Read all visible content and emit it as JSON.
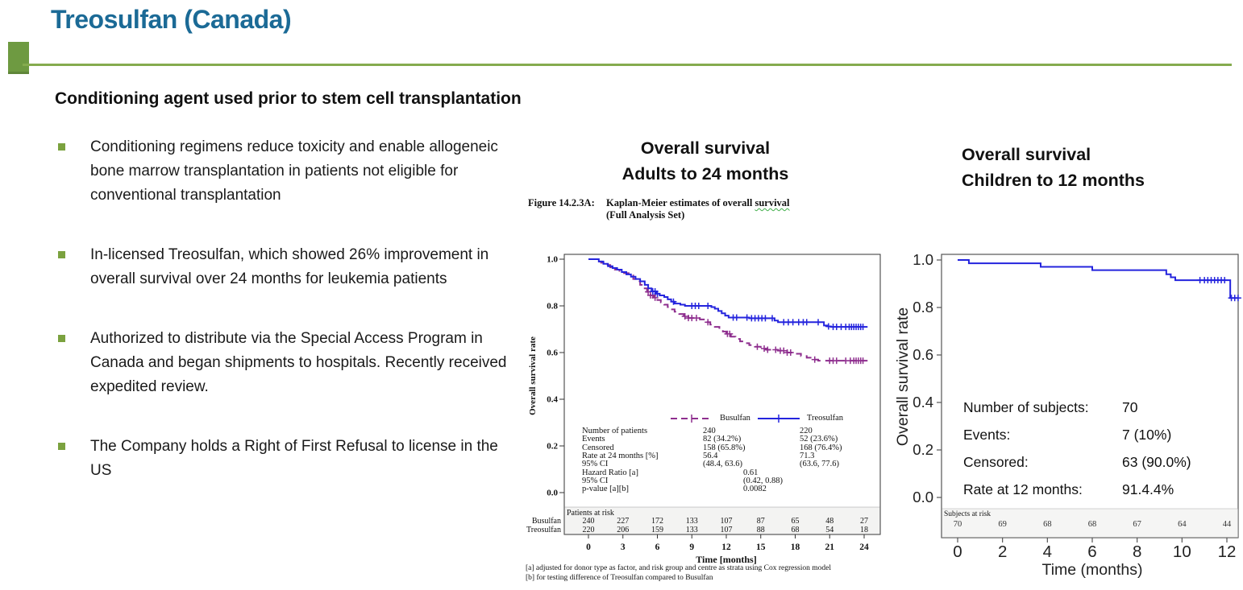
{
  "slide": {
    "title": "Treosulfan (Canada)",
    "subtitle": "Conditioning agent used prior to stem cell transplantation",
    "bullets": [
      "Conditioning regimens reduce toxicity and enable allogeneic bone marrow transplantation in patients not eligible for conventional transplantation",
      "In-licensed Treosulfan, which showed 26% improvement in overall survival over 24 months for leukemia patients",
      "Authorized to distribute via the Special Access Program in Canada and began shipments to hospitals. Recently received expedited review.",
      "The Company holds a Right of First Refusal to license in the US"
    ],
    "colors": {
      "title_teal": "#1B6A96",
      "accent_green": "#76A03F",
      "busulfan_purple": "#8E2E8E",
      "treosulfan_blue": "#2424DD"
    }
  },
  "adults_panel": {
    "title_line1": "Overall survival",
    "title_line2": "Adults to 24 months",
    "figure_label": "Figure 14.2.3A:",
    "figure_caption_prefix": "Kaplan-Meier estimates of overall ",
    "figure_caption_word": "survival",
    "figure_caption_line2": "(Full Analysis Set)",
    "footnote_a": "[a] adjusted for donor type as factor, and risk group and centre as strata using Cox regression model",
    "footnote_b": "[b] for testing difference of Treosulfan compared to Busulfan"
  },
  "children_panel": {
    "title_line1": "Overall survival",
    "title_line2": "Children to 12 months"
  },
  "chart_data": [
    {
      "id": "adults",
      "type": "line",
      "title": "Kaplan-Meier estimates of overall survival (Full Analysis Set)",
      "xlabel": "Time [months]",
      "ylabel": "Overall survival rate",
      "xlim": [
        0,
        24
      ],
      "ylim": [
        0,
        1
      ],
      "x_ticks": [
        0,
        3,
        6,
        9,
        12,
        15,
        18,
        21,
        24
      ],
      "y_ticks": [
        "1.0",
        "0.8",
        "0.6",
        "0.4",
        "0.2",
        "0.0"
      ],
      "series": [
        {
          "name": "Busulfan",
          "color": "#8E2E8E",
          "dash": true,
          "points": [
            [
              0,
              1
            ],
            [
              0.7,
              0.99
            ],
            [
              1.1,
              0.985
            ],
            [
              1.5,
              0.975
            ],
            [
              1.9,
              0.965
            ],
            [
              2.3,
              0.955
            ],
            [
              2.7,
              0.95
            ],
            [
              3.1,
              0.94
            ],
            [
              3.5,
              0.93
            ],
            [
              3.9,
              0.915
            ],
            [
              4.2,
              0.905
            ],
            [
              4.5,
              0.89
            ],
            [
              4.8,
              0.875
            ],
            [
              5.1,
              0.86
            ],
            [
              5.4,
              0.845
            ],
            [
              5.7,
              0.835
            ],
            [
              6,
              0.825
            ],
            [
              6.3,
              0.815
            ],
            [
              6.6,
              0.805
            ],
            [
              6.9,
              0.795
            ],
            [
              7.2,
              0.785
            ],
            [
              7.5,
              0.775
            ],
            [
              7.9,
              0.765
            ],
            [
              8.3,
              0.755
            ],
            [
              8.7,
              0.748
            ],
            [
              9.7,
              0.742
            ],
            [
              10.2,
              0.73
            ],
            [
              10.6,
              0.72
            ],
            [
              11,
              0.71
            ],
            [
              11.4,
              0.7
            ],
            [
              11.7,
              0.69
            ],
            [
              12,
              0.68
            ],
            [
              12.4,
              0.668
            ],
            [
              12.8,
              0.658
            ],
            [
              13.2,
              0.648
            ],
            [
              13.6,
              0.64
            ],
            [
              14,
              0.632
            ],
            [
              14.5,
              0.625
            ],
            [
              15,
              0.617
            ],
            [
              15.5,
              0.612
            ],
            [
              16.5,
              0.608
            ],
            [
              17.3,
              0.6
            ],
            [
              18,
              0.595
            ],
            [
              18.5,
              0.585
            ],
            [
              19,
              0.578
            ],
            [
              19.5,
              0.57
            ],
            [
              20,
              0.565
            ],
            [
              24.3,
              0.565
            ]
          ],
          "censors": [
            5.2,
            5.4,
            5.6,
            5.8,
            8.4,
            8.7,
            9,
            9.4,
            10.4,
            12.1,
            12.3,
            14.7,
            15.3,
            15.6,
            16.3,
            16.7,
            17,
            17.3,
            17.6,
            19.7,
            21,
            21.3,
            21.6,
            22.4,
            22.8,
            23.1,
            23.3,
            23.5,
            23.7,
            23.9
          ]
        },
        {
          "name": "Treosulfan",
          "color": "#2424DD",
          "dash": false,
          "points": [
            [
              0,
              1
            ],
            [
              0.9,
              0.99
            ],
            [
              1.3,
              0.98
            ],
            [
              1.7,
              0.97
            ],
            [
              2.1,
              0.962
            ],
            [
              2.5,
              0.955
            ],
            [
              2.9,
              0.945
            ],
            [
              3.3,
              0.935
            ],
            [
              3.7,
              0.925
            ],
            [
              4.1,
              0.915
            ],
            [
              4.5,
              0.905
            ],
            [
              4.9,
              0.89
            ],
            [
              5.2,
              0.875
            ],
            [
              5.5,
              0.862
            ],
            [
              5.9,
              0.852
            ],
            [
              6.2,
              0.845
            ],
            [
              6.6,
              0.838
            ],
            [
              6.9,
              0.828
            ],
            [
              7.2,
              0.818
            ],
            [
              7.5,
              0.81
            ],
            [
              8,
              0.805
            ],
            [
              8.4,
              0.8
            ],
            [
              10.7,
              0.795
            ],
            [
              11,
              0.788
            ],
            [
              11.3,
              0.778
            ],
            [
              11.6,
              0.768
            ],
            [
              11.9,
              0.758
            ],
            [
              12.2,
              0.75
            ],
            [
              14,
              0.747
            ],
            [
              16.2,
              0.737
            ],
            [
              16.5,
              0.73
            ],
            [
              20.5,
              0.716
            ],
            [
              20.8,
              0.712
            ],
            [
              21.1,
              0.71
            ],
            [
              24.3,
              0.71
            ]
          ],
          "censors": [
            5.6,
            5.8,
            6,
            7.4,
            9,
            9.3,
            9.6,
            10.4,
            12.6,
            12.9,
            13.8,
            14.2,
            14.5,
            14.8,
            15.1,
            15.4,
            16,
            17,
            17.4,
            17.8,
            18.3,
            18.7,
            19,
            20,
            20.9,
            21.3,
            21.6,
            22,
            22.4,
            22.7,
            22.9,
            23.1,
            23.3,
            23.5,
            23.7,
            23.9
          ]
        }
      ],
      "stats_rows": [
        {
          "label": "Number of patients",
          "busulfan": "240",
          "treosulfan": "220"
        },
        {
          "label": "Events",
          "busulfan": "82 (34.2%)",
          "treosulfan": "52 (23.6%)"
        },
        {
          "label": "Censored",
          "busulfan": "158 (65.8%)",
          "treosulfan": "168 (76.4%)"
        },
        {
          "label": "Rate at 24 months [%]",
          "busulfan": "56.4",
          "treosulfan": "71.3"
        },
        {
          "label": "95% CI",
          "busulfan": "(48.4, 63.6)",
          "treosulfan": "(63.6, 77.6)"
        },
        {
          "label": "Hazard Ratio [a]",
          "center": "0.61"
        },
        {
          "label": "95% CI",
          "center": "(0.42, 0.88)"
        },
        {
          "label": "p-value [a][b]",
          "center": "0.0082"
        }
      ],
      "at_risk": {
        "header": "Patients at risk",
        "rows": [
          {
            "name": "Busulfan",
            "values": [
              "240",
              "227",
              "172",
              "133",
              "107",
              "87",
              "65",
              "48",
              "27"
            ]
          },
          {
            "name": "Treosulfan",
            "values": [
              "220",
              "206",
              "159",
              "133",
              "107",
              "88",
              "68",
              "54",
              "18"
            ]
          }
        ]
      }
    },
    {
      "id": "children",
      "type": "line",
      "xlabel": "Time (months)",
      "ylabel": "Overall survival rate",
      "xlim": [
        0,
        12
      ],
      "ylim": [
        0,
        1
      ],
      "x_ticks": [
        0,
        2,
        4,
        6,
        8,
        10,
        12
      ],
      "y_ticks": [
        "1.0",
        "0.8",
        "0.6",
        "0.4",
        "0.2",
        "0.0"
      ],
      "series": [
        {
          "name": "Treosulfan",
          "color": "#2424DD",
          "dash": false,
          "points": [
            [
              0,
              1
            ],
            [
              0.5,
              0.986
            ],
            [
              3.7,
              0.971
            ],
            [
              6,
              0.957
            ],
            [
              9.3,
              0.94
            ],
            [
              9.5,
              0.927
            ],
            [
              9.7,
              0.915
            ],
            [
              12.15,
              0.84
            ],
            [
              12.5,
              0.84
            ]
          ],
          "censors": [
            10.8,
            11,
            11.15,
            11.3,
            11.45,
            11.6,
            11.75,
            11.9,
            12.2,
            12.35,
            12.5
          ]
        }
      ],
      "stats_rows": [
        {
          "label": "Number of subjects:",
          "value": "70"
        },
        {
          "label": "Events:",
          "value": "7 (10%)"
        },
        {
          "label": "Censored:",
          "value": "63 (90.0%)"
        },
        {
          "label": "Rate at 12 months:",
          "value": "91.4.4%"
        }
      ],
      "at_risk": {
        "header": "Subjects at risk",
        "values": [
          "70",
          "69",
          "68",
          "68",
          "67",
          "64",
          "44"
        ]
      }
    }
  ]
}
